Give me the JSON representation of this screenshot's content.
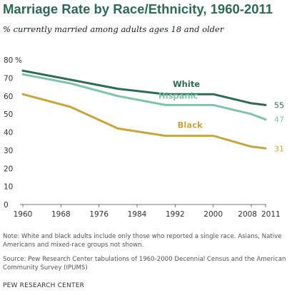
{
  "chart_data": {
    "type": "line",
    "title": "Marriage Rate by Race/Ethnicity, 1960-2011",
    "subtitle": "% currently married among adults ages 18 and older",
    "xlabel": "",
    "ylabel": "",
    "unit_label": "%",
    "x": [
      1960,
      1970,
      1980,
      1990,
      2000,
      2008,
      2011
    ],
    "x_ticks": [
      1960,
      1968,
      1976,
      1984,
      1992,
      2000,
      2008,
      2011
    ],
    "xlim": [
      1960,
      2011
    ],
    "ylim": [
      0,
      80
    ],
    "y_ticks": [
      0,
      10,
      20,
      30,
      40,
      50,
      60,
      70,
      80
    ],
    "grid": false,
    "series": [
      {
        "name": "White",
        "color": "#2d6b53",
        "values": [
          74,
          69,
          64,
          61,
          61,
          56,
          55
        ],
        "end_label": "55"
      },
      {
        "name": "Hispanic",
        "color": "#7fc3ad",
        "values": [
          72,
          67,
          60,
          55,
          55,
          50,
          47
        ],
        "end_label": "47"
      },
      {
        "name": "Black",
        "color": "#c9a53a",
        "values": [
          61,
          54,
          42,
          38,
          38,
          32,
          31
        ],
        "end_label": "31"
      }
    ]
  },
  "footer": {
    "note": "Note: White and black adults include only those who reported a single race. Asians, Native Americans and mixed-race groups not shown.",
    "source": "Source: Pew Research Center tabulations of 1960-2000 Decennial Census and the American Community Survey (IPUMS)",
    "credit": "PEW RESEARCH CENTER"
  }
}
